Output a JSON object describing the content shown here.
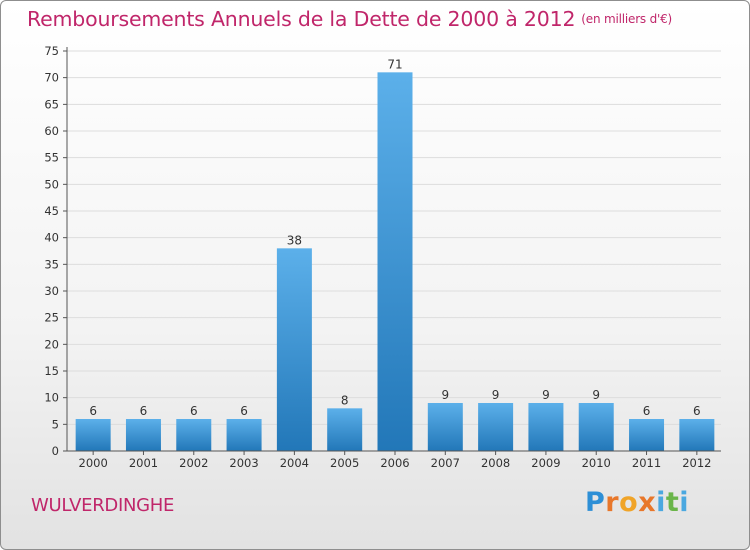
{
  "title": "Remboursements Annuels de la Dette de 2000 à 2012",
  "title_unit": "(en milliers d'€)",
  "commune": "WULVERDINGHE",
  "brand": {
    "name": "Proxiti",
    "letters": [
      "P",
      "r",
      "o",
      "x",
      "i",
      "t",
      "i"
    ]
  },
  "colors": {
    "title": "#c0266a",
    "bar_light": "#5cb0ea",
    "bar_dark": "#2277b8",
    "grid": "#dddddd",
    "axis": "#555555",
    "text": "#333333"
  },
  "chart_data": {
    "type": "bar",
    "title": "Remboursements Annuels de la Dette de 2000 à 2012",
    "categories": [
      "2000",
      "2001",
      "2002",
      "2003",
      "2004",
      "2005",
      "2006",
      "2007",
      "2008",
      "2009",
      "2010",
      "2011",
      "2012"
    ],
    "values": [
      6,
      6,
      6,
      6,
      38,
      8,
      71,
      9,
      9,
      9,
      9,
      6,
      6
    ],
    "data_labels": [
      "6",
      "6",
      "6",
      "6",
      "38",
      "8",
      "71",
      "9",
      "9",
      "9",
      "9",
      "6",
      "6"
    ],
    "ylim": [
      0,
      75
    ],
    "yticks": [
      0,
      5,
      10,
      15,
      20,
      25,
      30,
      35,
      40,
      45,
      50,
      55,
      60,
      65,
      70,
      75
    ],
    "xlabel": "",
    "ylabel": "",
    "grid": true,
    "legend": "none"
  }
}
